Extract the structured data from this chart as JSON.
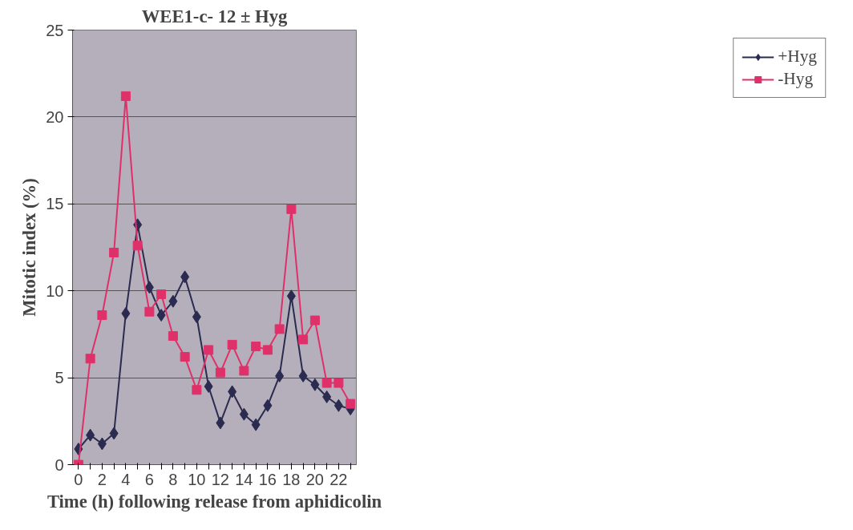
{
  "chart_data": {
    "type": "line",
    "title": "WEE1-c- 12 ± Hyg",
    "xlabel": "Time (h) following release from aphidicolin",
    "ylabel": "Mitotic index (%)",
    "categories": [
      "0",
      null,
      "2",
      null,
      "4",
      null,
      "6",
      null,
      "8",
      null,
      "10",
      null,
      "12",
      null,
      "14",
      null,
      "16",
      null,
      "18",
      null,
      "20",
      null,
      "22",
      null
    ],
    "series": [
      {
        "name": "+Hyg",
        "color": "#2b2a50",
        "marker": "diamond",
        "values": [
          0.9,
          1.7,
          1.2,
          1.8,
          8.7,
          13.8,
          10.2,
          8.6,
          9.4,
          10.8,
          8.5,
          4.5,
          2.4,
          4.2,
          2.9,
          2.3,
          3.4,
          5.1,
          9.7,
          5.1,
          4.6,
          3.9,
          3.4,
          3.2
        ]
      },
      {
        "name": "-Hyg",
        "color": "#e0306a",
        "marker": "square",
        "values": [
          0,
          6.1,
          8.6,
          12.2,
          21.2,
          12.6,
          8.8,
          9.8,
          7.4,
          6.2,
          4.3,
          6.6,
          5.3,
          6.9,
          5.4,
          6.8,
          6.6,
          7.8,
          14.7,
          7.2,
          8.3,
          4.7,
          4.7,
          3.5
        ]
      }
    ],
    "ylim": [
      0,
      25
    ],
    "yticks": [
      0,
      5,
      10,
      15,
      20,
      25
    ],
    "grid": "y",
    "legend": "right",
    "line_style": "solid"
  }
}
